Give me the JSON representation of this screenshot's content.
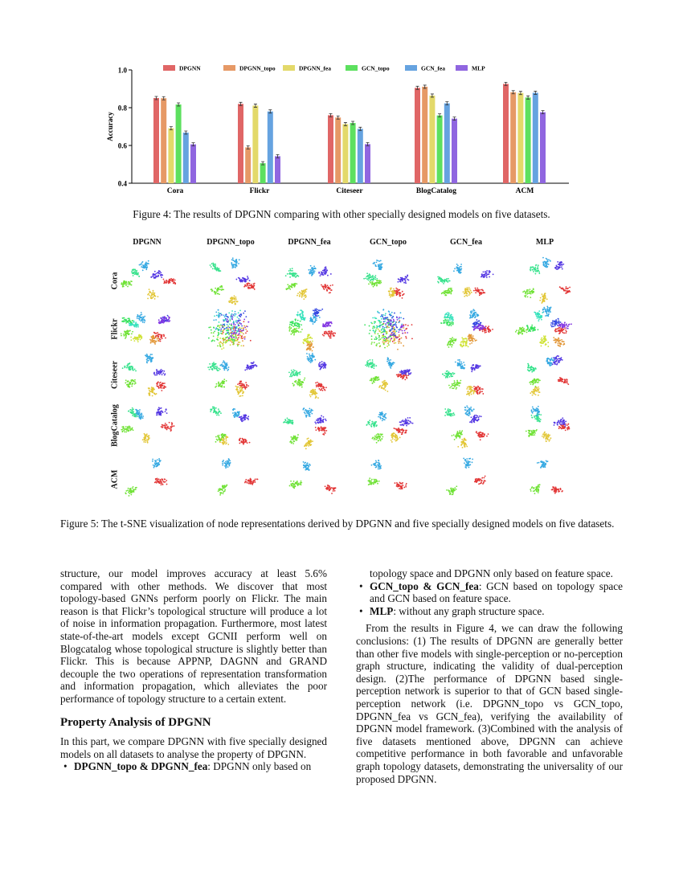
{
  "chart_data": {
    "type": "bar",
    "categories": [
      "Cora",
      "Flickr",
      "Citeseer",
      "BlogCatalog",
      "ACM"
    ],
    "series": [
      {
        "name": "DPGNN",
        "color": "#e06666",
        "values": [
          0.851,
          0.82,
          0.76,
          0.905,
          0.926
        ]
      },
      {
        "name": "DPGNN_topo",
        "color": "#e69966",
        "values": [
          0.85,
          0.59,
          0.748,
          0.911,
          0.882
        ]
      },
      {
        "name": "DPGNN_fea",
        "color": "#e3d96a",
        "values": [
          0.691,
          0.811,
          0.713,
          0.864,
          0.878
        ]
      },
      {
        "name": "GCN_topo",
        "color": "#5de05f",
        "values": [
          0.817,
          0.506,
          0.719,
          0.759,
          0.854
        ]
      },
      {
        "name": "GCN_fea",
        "color": "#66a3e0",
        "values": [
          0.668,
          0.78,
          0.688,
          0.823,
          0.879
        ]
      },
      {
        "name": "MLP",
        "color": "#9066e0",
        "values": [
          0.606,
          0.543,
          0.607,
          0.742,
          0.776
        ]
      }
    ],
    "title": "",
    "xlabel": "",
    "ylabel": "Accuracy",
    "ylim": [
      0.4,
      1.0
    ],
    "yticks": [
      "0.4",
      "0.6",
      "0.8",
      "1.0"
    ],
    "legend": "top",
    "error_bars": true,
    "grid": false
  },
  "figure4_caption": "Figure 4: The results of DPGNN comparing with other specially designed models on five datasets.",
  "figure5": {
    "columns": [
      "DPGNN",
      "DPGNN_topo",
      "DPGNN_fea",
      "GCN_topo",
      "GCN_fea",
      "MLP"
    ],
    "rows": [
      "Cora",
      "Flickr",
      "Citeseer",
      "BlogCatalog",
      "ACM"
    ],
    "caption": "Figure 5: The t-SNE visualization of node representations derived by DPGNN and five specially designed models on five datasets."
  },
  "left_column": {
    "para1": "structure, our model improves accuracy at least 5.6% compared with other methods. We discover that most topology-based GNNs perform poorly on Flickr. The main reason is that Flickr’s topological structure will produce a lot of noise in information propagation. Furthermore, most latest state-of-the-art models except GCNII perform well on Blogcatalog whose topological structure is slightly better than Flickr. This is because APPNP, DAGNN and GRAND decouple the two operations of representation transformation and information propagation, which alleviates the poor performance of topology structure to a certain extent.",
    "heading": "Property Analysis of DPGNN",
    "para2": "In this part, we compare DPGNN with five specially designed models on all datasets to analyse the property of DPGNN.",
    "bullet1_bold": "DPGNN_topo & DPGNN_fea",
    "bullet1_text": ": DPGNN only based on"
  },
  "right_column": {
    "bullet1_cont": "topology space and DPGNN only based on feature space.",
    "bullet2_bold": "GCN_topo & GCN_fea",
    "bullet2_text": ": GCN based on topology space and GCN based on feature space.",
    "bullet3_bold": "MLP",
    "bullet3_text": ": without any graph structure space.",
    "para": "From the results in Figure 4, we can draw the following conclusions: (1) The results of DPGNN are generally better than other five models with single-perception or no-perception graph structure, indicating the validity of dual-perception design. (2)The performance of DPGNN based single-perception network is superior to that of GCN based single-perception network (i.e. DPGNN_topo vs GCN_topo, DPGNN_fea vs GCN_fea), verifying the availability of DPGNN model framework. (3)Combined with the analysis of five datasets mentioned above, DPGNN can achieve competitive performance in both favorable and unfavorable graph topology datasets, demonstrating the universality of our proposed DPGNN."
  }
}
